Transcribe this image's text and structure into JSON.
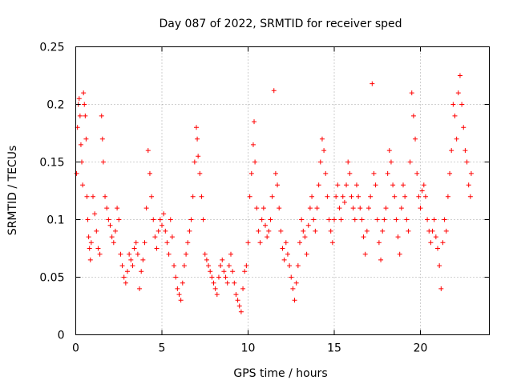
{
  "chart_data": {
    "type": "scatter",
    "title": "Day 087 of 2022, SRMTID for receiver sped",
    "xlabel": "GPS time / hours",
    "ylabel": "SRMTID / TECUs",
    "xlim": [
      0,
      24
    ],
    "ylim": [
      0,
      0.25
    ],
    "grid": true,
    "marker": "+",
    "color": "#ff0000",
    "x_ticks": [
      0,
      5,
      10,
      15,
      20
    ],
    "x_tick_labels": [
      "0",
      "5",
      "10",
      "15",
      "20"
    ],
    "y_ticks": [
      0,
      0.05,
      0.1,
      0.15,
      0.2,
      0.25
    ],
    "y_tick_labels": [
      "0",
      "0.05",
      "0.1",
      "0.15",
      "0.2",
      "0.25"
    ],
    "series": [
      {
        "name": "sped",
        "points": [
          [
            0.05,
            0.14
          ],
          [
            0.1,
            0.18
          ],
          [
            0.15,
            0.2
          ],
          [
            0.2,
            0.205
          ],
          [
            0.25,
            0.19
          ],
          [
            0.3,
            0.165
          ],
          [
            0.35,
            0.15
          ],
          [
            0.4,
            0.13
          ],
          [
            0.45,
            0.21
          ],
          [
            0.5,
            0.2
          ],
          [
            0.55,
            0.19
          ],
          [
            0.6,
            0.17
          ],
          [
            0.65,
            0.12
          ],
          [
            0.7,
            0.1
          ],
          [
            0.75,
            0.085
          ],
          [
            0.8,
            0.075
          ],
          [
            0.85,
            0.065
          ],
          [
            0.9,
            0.08
          ],
          [
            1.0,
            0.12
          ],
          [
            1.1,
            0.105
          ],
          [
            1.2,
            0.09
          ],
          [
            1.3,
            0.075
          ],
          [
            1.4,
            0.07
          ],
          [
            1.5,
            0.19
          ],
          [
            1.55,
            0.17
          ],
          [
            1.6,
            0.15
          ],
          [
            1.7,
            0.12
          ],
          [
            1.8,
            0.11
          ],
          [
            1.9,
            0.1
          ],
          [
            2.0,
            0.095
          ],
          [
            2.1,
            0.085
          ],
          [
            2.2,
            0.08
          ],
          [
            2.3,
            0.09
          ],
          [
            2.4,
            0.11
          ],
          [
            2.5,
            0.1
          ],
          [
            2.6,
            0.07
          ],
          [
            2.7,
            0.06
          ],
          [
            2.8,
            0.05
          ],
          [
            2.9,
            0.045
          ],
          [
            3.0,
            0.055
          ],
          [
            3.1,
            0.07
          ],
          [
            3.2,
            0.065
          ],
          [
            3.3,
            0.06
          ],
          [
            3.4,
            0.075
          ],
          [
            3.5,
            0.08
          ],
          [
            3.6,
            0.07
          ],
          [
            3.7,
            0.04
          ],
          [
            3.8,
            0.055
          ],
          [
            3.9,
            0.065
          ],
          [
            4.0,
            0.08
          ],
          [
            4.1,
            0.11
          ],
          [
            4.2,
            0.16
          ],
          [
            4.3,
            0.14
          ],
          [
            4.4,
            0.12
          ],
          [
            4.5,
            0.1
          ],
          [
            4.6,
            0.085
          ],
          [
            4.7,
            0.075
          ],
          [
            4.8,
            0.09
          ],
          [
            4.9,
            0.1
          ],
          [
            5.0,
            0.095
          ],
          [
            5.1,
            0.105
          ],
          [
            5.2,
            0.09
          ],
          [
            5.3,
            0.08
          ],
          [
            5.4,
            0.07
          ],
          [
            5.5,
            0.1
          ],
          [
            5.6,
            0.085
          ],
          [
            5.7,
            0.06
          ],
          [
            5.8,
            0.05
          ],
          [
            5.9,
            0.04
          ],
          [
            6.0,
            0.035
          ],
          [
            6.1,
            0.03
          ],
          [
            6.2,
            0.045
          ],
          [
            6.3,
            0.06
          ],
          [
            6.4,
            0.07
          ],
          [
            6.5,
            0.08
          ],
          [
            6.6,
            0.09
          ],
          [
            6.7,
            0.1
          ],
          [
            6.8,
            0.12
          ],
          [
            6.9,
            0.15
          ],
          [
            7.0,
            0.18
          ],
          [
            7.05,
            0.17
          ],
          [
            7.1,
            0.155
          ],
          [
            7.2,
            0.14
          ],
          [
            7.3,
            0.12
          ],
          [
            7.4,
            0.1
          ],
          [
            7.5,
            0.07
          ],
          [
            7.6,
            0.065
          ],
          [
            7.7,
            0.06
          ],
          [
            7.8,
            0.055
          ],
          [
            7.9,
            0.05
          ],
          [
            8.0,
            0.045
          ],
          [
            8.1,
            0.04
          ],
          [
            8.2,
            0.035
          ],
          [
            8.3,
            0.05
          ],
          [
            8.4,
            0.06
          ],
          [
            8.5,
            0.065
          ],
          [
            8.6,
            0.055
          ],
          [
            8.7,
            0.05
          ],
          [
            8.8,
            0.045
          ],
          [
            8.9,
            0.06
          ],
          [
            9.0,
            0.07
          ],
          [
            9.1,
            0.055
          ],
          [
            9.2,
            0.045
          ],
          [
            9.3,
            0.035
          ],
          [
            9.4,
            0.03
          ],
          [
            9.5,
            0.025
          ],
          [
            9.6,
            0.02
          ],
          [
            9.7,
            0.04
          ],
          [
            9.8,
            0.055
          ],
          [
            9.9,
            0.06
          ],
          [
            10.0,
            0.08
          ],
          [
            10.1,
            0.12
          ],
          [
            10.2,
            0.14
          ],
          [
            10.3,
            0.165
          ],
          [
            10.35,
            0.185
          ],
          [
            10.4,
            0.15
          ],
          [
            10.5,
            0.11
          ],
          [
            10.6,
            0.09
          ],
          [
            10.7,
            0.08
          ],
          [
            10.8,
            0.1
          ],
          [
            10.9,
            0.11
          ],
          [
            11.0,
            0.095
          ],
          [
            11.1,
            0.085
          ],
          [
            11.2,
            0.09
          ],
          [
            11.3,
            0.1
          ],
          [
            11.4,
            0.12
          ],
          [
            11.5,
            0.212
          ],
          [
            11.6,
            0.14
          ],
          [
            11.7,
            0.13
          ],
          [
            11.8,
            0.11
          ],
          [
            11.9,
            0.09
          ],
          [
            12.0,
            0.075
          ],
          [
            12.1,
            0.065
          ],
          [
            12.2,
            0.08
          ],
          [
            12.3,
            0.07
          ],
          [
            12.4,
            0.06
          ],
          [
            12.5,
            0.05
          ],
          [
            12.6,
            0.04
          ],
          [
            12.7,
            0.03
          ],
          [
            12.8,
            0.045
          ],
          [
            12.9,
            0.06
          ],
          [
            13.0,
            0.08
          ],
          [
            13.1,
            0.1
          ],
          [
            13.2,
            0.09
          ],
          [
            13.3,
            0.085
          ],
          [
            13.4,
            0.07
          ],
          [
            13.5,
            0.095
          ],
          [
            13.6,
            0.11
          ],
          [
            13.7,
            0.12
          ],
          [
            13.8,
            0.1
          ],
          [
            13.9,
            0.09
          ],
          [
            14.0,
            0.11
          ],
          [
            14.1,
            0.13
          ],
          [
            14.2,
            0.15
          ],
          [
            14.3,
            0.17
          ],
          [
            14.4,
            0.16
          ],
          [
            14.5,
            0.14
          ],
          [
            14.6,
            0.12
          ],
          [
            14.7,
            0.1
          ],
          [
            14.8,
            0.09
          ],
          [
            14.9,
            0.08
          ],
          [
            15.0,
            0.1
          ],
          [
            15.1,
            0.12
          ],
          [
            15.2,
            0.13
          ],
          [
            15.3,
            0.11
          ],
          [
            15.4,
            0.1
          ],
          [
            15.5,
            0.12
          ],
          [
            15.6,
            0.115
          ],
          [
            15.7,
            0.13
          ],
          [
            15.8,
            0.15
          ],
          [
            15.9,
            0.14
          ],
          [
            16.0,
            0.12
          ],
          [
            16.1,
            0.11
          ],
          [
            16.2,
            0.1
          ],
          [
            16.3,
            0.13
          ],
          [
            16.4,
            0.12
          ],
          [
            16.5,
            0.11
          ],
          [
            16.6,
            0.1
          ],
          [
            16.7,
            0.085
          ],
          [
            16.8,
            0.07
          ],
          [
            16.9,
            0.09
          ],
          [
            17.0,
            0.11
          ],
          [
            17.1,
            0.12
          ],
          [
            17.2,
            0.218
          ],
          [
            17.3,
            0.14
          ],
          [
            17.4,
            0.13
          ],
          [
            17.5,
            0.1
          ],
          [
            17.6,
            0.08
          ],
          [
            17.7,
            0.065
          ],
          [
            17.8,
            0.09
          ],
          [
            17.9,
            0.1
          ],
          [
            18.0,
            0.11
          ],
          [
            18.1,
            0.14
          ],
          [
            18.2,
            0.16
          ],
          [
            18.3,
            0.15
          ],
          [
            18.4,
            0.13
          ],
          [
            18.5,
            0.12
          ],
          [
            18.6,
            0.1
          ],
          [
            18.7,
            0.085
          ],
          [
            18.8,
            0.07
          ],
          [
            18.9,
            0.11
          ],
          [
            19.0,
            0.13
          ],
          [
            19.1,
            0.12
          ],
          [
            19.2,
            0.1
          ],
          [
            19.3,
            0.09
          ],
          [
            19.4,
            0.15
          ],
          [
            19.5,
            0.21
          ],
          [
            19.6,
            0.19
          ],
          [
            19.7,
            0.17
          ],
          [
            19.8,
            0.14
          ],
          [
            19.9,
            0.12
          ],
          [
            20.0,
            0.11
          ],
          [
            20.1,
            0.125
          ],
          [
            20.2,
            0.13
          ],
          [
            20.3,
            0.12
          ],
          [
            20.4,
            0.1
          ],
          [
            20.5,
            0.09
          ],
          [
            20.6,
            0.08
          ],
          [
            20.7,
            0.09
          ],
          [
            20.8,
            0.1
          ],
          [
            20.9,
            0.085
          ],
          [
            21.0,
            0.075
          ],
          [
            21.1,
            0.06
          ],
          [
            21.2,
            0.04
          ],
          [
            21.3,
            0.08
          ],
          [
            21.4,
            0.1
          ],
          [
            21.5,
            0.09
          ],
          [
            21.6,
            0.12
          ],
          [
            21.7,
            0.14
          ],
          [
            21.8,
            0.16
          ],
          [
            21.9,
            0.2
          ],
          [
            22.0,
            0.19
          ],
          [
            22.1,
            0.17
          ],
          [
            22.2,
            0.21
          ],
          [
            22.3,
            0.225
          ],
          [
            22.4,
            0.2
          ],
          [
            22.5,
            0.18
          ],
          [
            22.6,
            0.16
          ],
          [
            22.7,
            0.15
          ],
          [
            22.8,
            0.13
          ],
          [
            22.9,
            0.12
          ],
          [
            22.95,
            0.14
          ]
        ]
      }
    ]
  }
}
